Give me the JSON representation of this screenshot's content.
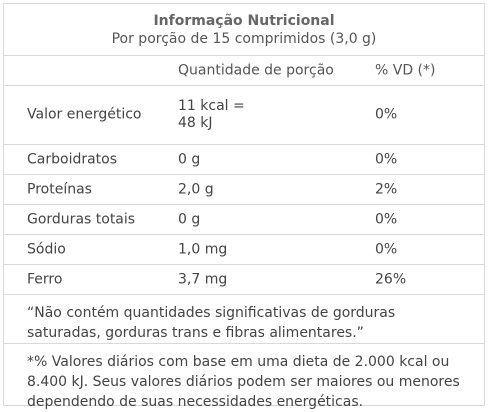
{
  "header": {
    "title": "Informação Nutricional",
    "subtitle": "Por porção de 15 comprimidos (3,0 g)"
  },
  "columns": {
    "nutrient": "",
    "quantity": "Quantidade de porção",
    "daily_value": "% VD (*)"
  },
  "rows": [
    {
      "nutrient": "Valor energético",
      "quantity_line1": "11 kcal =",
      "quantity_line2": "48 kJ",
      "daily_value": "0%"
    },
    {
      "nutrient": "Carboidratos",
      "quantity": "0 g",
      "daily_value": "0%"
    },
    {
      "nutrient": "Proteínas",
      "quantity": "2,0 g",
      "daily_value": "2%"
    },
    {
      "nutrient": "Gorduras totais",
      "quantity": "0 g",
      "daily_value": "0%"
    },
    {
      "nutrient": "Sódio",
      "quantity": "1,0 mg",
      "daily_value": "0%"
    },
    {
      "nutrient": "Ferro",
      "quantity": "3,7 mg",
      "daily_value": "26%"
    }
  ],
  "notes": {
    "not_significant": "“Não contém quantidades significativas de gorduras saturadas, gorduras trans e fibras alimentares.”",
    "daily_values": "*% Valores diários com base em uma dieta de 2.000 kcal ou 8.400 kJ. Seus valores diários podem ser maiores ou menores dependendo de suas necessidades energéticas."
  }
}
